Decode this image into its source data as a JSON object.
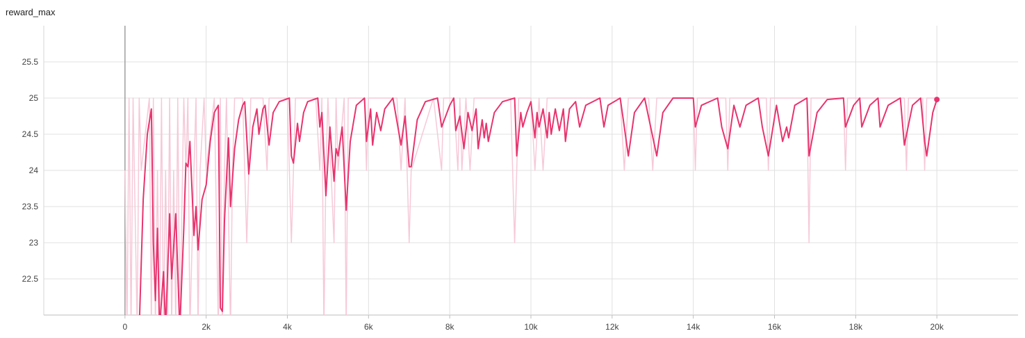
{
  "chart_data": {
    "type": "line",
    "title": "reward_max",
    "xlim": [
      -2000,
      22000
    ],
    "xticks": [
      0,
      {
        "value": 2000,
        "label": "2k"
      },
      {
        "value": 4000,
        "label": "4k"
      },
      {
        "value": 6000,
        "label": "6k"
      },
      {
        "value": 8000,
        "label": "8k"
      },
      {
        "value": 10000,
        "label": "10k"
      },
      {
        "value": 12000,
        "label": "12k"
      },
      {
        "value": 14000,
        "label": "14k"
      },
      {
        "value": 16000,
        "label": "16k"
      },
      {
        "value": 18000,
        "label": "18k"
      },
      {
        "value": 20000,
        "label": "20k"
      }
    ],
    "ylim": [
      22,
      26
    ],
    "yticks": [
      22.5,
      23,
      23.5,
      24,
      24.5,
      25,
      25.5
    ],
    "grid": true,
    "series": [
      {
        "color": "#f6c9d8",
        "x": [
          0,
          50,
          100,
          150,
          200,
          300,
          350,
          400,
          600,
          650,
          700,
          750,
          800,
          850,
          900,
          950,
          1000,
          1050,
          1100,
          1150,
          1200,
          1250,
          1300,
          1350,
          1450,
          1500,
          1550,
          1600,
          1700,
          1750,
          1800,
          1850,
          1950,
          2000,
          2200,
          2300,
          2350,
          2400,
          2450,
          2500,
          2600,
          2650,
          2700,
          2900,
          3000,
          3050,
          3100,
          3400,
          3500,
          3550,
          3600,
          4000,
          4100,
          4150,
          4200,
          4700,
          4800,
          4850,
          4900,
          4950,
          5000,
          5150,
          5200,
          5250,
          5400,
          5450,
          5500,
          5900,
          5950,
          6000,
          6700,
          6800,
          6900,
          7000,
          7050,
          7600,
          7800,
          7850,
          8100,
          8200,
          8250,
          8300,
          8400,
          8500,
          8600,
          9500,
          9600,
          9650,
          9700,
          10000,
          10100,
          10200,
          10300,
          10400,
          12200,
          12300,
          12400,
          12900,
          13000,
          13100,
          14000,
          14050,
          14100,
          14800,
          14850,
          14900,
          15800,
          15850,
          15900,
          16800,
          16850,
          16900,
          17700,
          17750,
          17800,
          19200,
          19250,
          19300,
          19650,
          19700,
          19750,
          20000
        ],
        "values": [
          24,
          21.8,
          25,
          21.8,
          25,
          21.8,
          25,
          24,
          25,
          21.8,
          25,
          21.8,
          24,
          21.8,
          25,
          21.8,
          24,
          21.8,
          25,
          21.8,
          24,
          21.8,
          25,
          21.8,
          25,
          24,
          25,
          21.8,
          24,
          25,
          21.8,
          24,
          25,
          24,
          25,
          21.8,
          25,
          21.8,
          24,
          25,
          21.8,
          24,
          25,
          25,
          23,
          24,
          25,
          25,
          24,
          25,
          25,
          25,
          23,
          24,
          25,
          25,
          24,
          25,
          21.8,
          24,
          25,
          23,
          25,
          24,
          25,
          21.8,
          25,
          25,
          24,
          25,
          25,
          24,
          25,
          23,
          24,
          25,
          24,
          25,
          25,
          24,
          25,
          24,
          25,
          24,
          25,
          25,
          23,
          24,
          25,
          25,
          24,
          25,
          24,
          25,
          25,
          24,
          25,
          25,
          24,
          25,
          25,
          24,
          25,
          25,
          24,
          25,
          25,
          24,
          25,
          25,
          23,
          25,
          25,
          24,
          25,
          25,
          24,
          25,
          25,
          24,
          25,
          25
        ]
      },
      {
        "color": "#e8336e",
        "x": [
          350,
          450,
          550,
          650,
          700,
          750,
          800,
          850,
          950,
          1000,
          1100,
          1150,
          1250,
          1350,
          1450,
          1500,
          1550,
          1600,
          1700,
          1750,
          1800,
          1900,
          2000,
          2100,
          2200,
          2300,
          2350,
          2400,
          2450,
          2550,
          2600,
          2700,
          2800,
          2900,
          2950,
          3050,
          3150,
          3250,
          3300,
          3400,
          3450,
          3550,
          3650,
          3800,
          4050,
          4100,
          4150,
          4250,
          4300,
          4400,
          4500,
          4750,
          4800,
          4850,
          4950,
          5050,
          5150,
          5200,
          5250,
          5350,
          5450,
          5550,
          5700,
          5900,
          5950,
          6050,
          6100,
          6200,
          6300,
          6400,
          6600,
          6800,
          6900,
          7000,
          7050,
          7200,
          7400,
          7700,
          7800,
          8000,
          8100,
          8150,
          8250,
          8350,
          8450,
          8550,
          8650,
          8700,
          8800,
          8850,
          8900,
          8950,
          9100,
          9300,
          9600,
          9650,
          9750,
          9800,
          9900,
          10000,
          10100,
          10150,
          10200,
          10300,
          10400,
          10450,
          10500,
          10600,
          10700,
          10800,
          10850,
          10950,
          11100,
          11200,
          11350,
          11700,
          11800,
          11900,
          12200,
          12300,
          12400,
          12550,
          12800,
          12950,
          13100,
          13250,
          13500,
          14000,
          14050,
          14200,
          14600,
          14700,
          14850,
          15000,
          15150,
          15300,
          15600,
          15700,
          15850,
          16050,
          16200,
          16300,
          16350,
          16500,
          16800,
          16850,
          17050,
          17300,
          17700,
          17750,
          17950,
          18100,
          18150,
          18350,
          18550,
          18600,
          18800,
          19100,
          19200,
          19400,
          19600,
          19700,
          19750,
          19900,
          20000
        ],
        "values": [
          21.8,
          23.6,
          24.5,
          24.85,
          23,
          22.2,
          23.2,
          21.8,
          22.6,
          21.8,
          23.4,
          22.5,
          23.4,
          21.8,
          23.2,
          24.1,
          24.05,
          24.4,
          23.1,
          23.5,
          22.9,
          23.6,
          23.8,
          24.4,
          24.8,
          24.9,
          22.1,
          22.05,
          23.3,
          24.45,
          23.5,
          24.3,
          24.7,
          24.9,
          24.95,
          23.95,
          24.6,
          24.85,
          24.5,
          24.85,
          24.9,
          24.35,
          24.8,
          24.95,
          25,
          24.2,
          24.1,
          24.65,
          24.4,
          24.8,
          24.95,
          25,
          24.6,
          24.8,
          23.65,
          24.6,
          23.85,
          24.3,
          24.2,
          24.6,
          23.45,
          24.4,
          24.9,
          25,
          24.4,
          24.85,
          24.35,
          24.8,
          24.55,
          24.85,
          25,
          24.35,
          24.75,
          24.05,
          24.05,
          24.7,
          24.95,
          25,
          24.6,
          24.9,
          25,
          24.55,
          24.75,
          24.3,
          24.8,
          24.55,
          24.85,
          24.3,
          24.7,
          24.45,
          24.65,
          24.4,
          24.8,
          24.95,
          25,
          24.2,
          24.8,
          24.6,
          24.8,
          24.95,
          24.45,
          24.8,
          24.6,
          24.85,
          24.45,
          24.8,
          24.5,
          24.85,
          24.55,
          24.85,
          24.4,
          24.85,
          24.95,
          24.6,
          24.9,
          25,
          24.6,
          24.9,
          25,
          24.6,
          24.2,
          24.8,
          25,
          24.6,
          24.2,
          24.8,
          25,
          25,
          24.6,
          24.9,
          25,
          24.6,
          24.3,
          24.9,
          24.6,
          24.9,
          25,
          24.6,
          24.2,
          24.9,
          24.4,
          24.6,
          24.45,
          24.9,
          25,
          24.2,
          24.8,
          24.98,
          25,
          24.6,
          24.9,
          25,
          24.6,
          24.9,
          25,
          24.6,
          24.9,
          25,
          24.35,
          24.9,
          25,
          24.4,
          24.2,
          24.8,
          24.98
        ]
      }
    ]
  }
}
